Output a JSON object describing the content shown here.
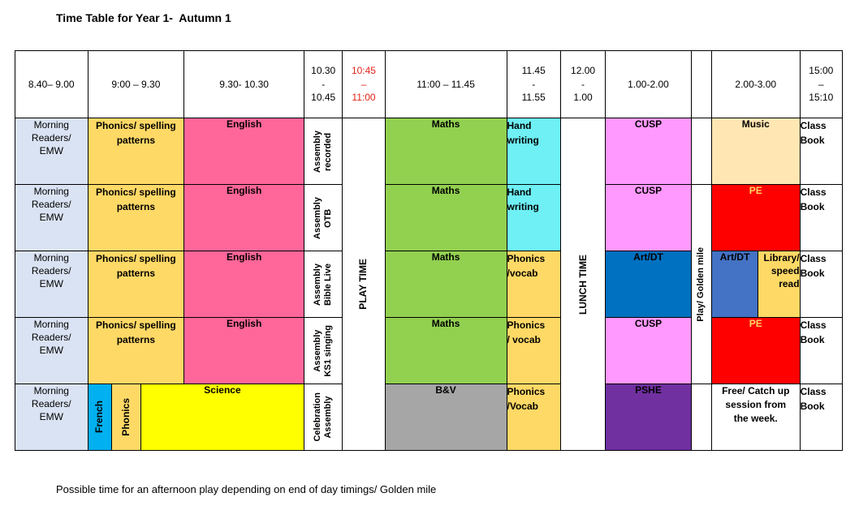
{
  "title": "Time Table for Year 1-  Autumn 1",
  "footnote": "Possible time for an afternoon play depending on end of day timings/ Golden mile",
  "headers": {
    "h1": "8.40– 9.00",
    "h2": "9:00 – 9.30",
    "h3": "9.30- 10.30",
    "h4_a": "10.30",
    "h4_b": "-",
    "h4_c": "10.45",
    "h5_a": "10:45",
    "h5_b": "–",
    "h5_c": "11:00",
    "h6": "11:00 – 11.45",
    "h7_a": "11.45",
    "h7_b": "-",
    "h7_c": "11.55",
    "h8_a": "12.00",
    "h8_b": "-",
    "h8_c": "1.00",
    "h9": "1.00-2.00",
    "h11": "2.00-3.00",
    "h12_a": "15:00",
    "h12_b": "–",
    "h12_c": "15:10"
  },
  "spans": {
    "play_time": "PLAY TIME",
    "lunch_time": "LUNCH TIME",
    "play_golden_mile": "Play/ Golden mile"
  },
  "rows": [
    {
      "morning": [
        "Morning",
        "Readers/",
        "EMW"
      ],
      "phonics": [
        "Phonics/ spelling",
        "patterns"
      ],
      "english": "English",
      "assembly": [
        "Assembly",
        "recorded"
      ],
      "maths": "Maths",
      "slot": [
        "Hand",
        "writing"
      ],
      "afternoon1": "CUSP",
      "afternoon2": "Music",
      "classbook": [
        "Class",
        "Book"
      ]
    },
    {
      "morning": [
        "Morning",
        "Readers/",
        "EMW"
      ],
      "phonics": [
        "Phonics/ spelling",
        "patterns"
      ],
      "english": "English",
      "assembly": [
        "Assembly",
        "OTB"
      ],
      "maths": "Maths",
      "slot": [
        "Hand",
        "writing"
      ],
      "afternoon1": "CUSP",
      "afternoon2": "PE",
      "classbook": [
        "Class",
        "Book"
      ]
    },
    {
      "morning": [
        "Morning",
        "Readers/",
        "EMW"
      ],
      "phonics": [
        "Phonics/ spelling",
        "patterns"
      ],
      "english": "English",
      "assembly": [
        "Assembly",
        "Bible Live"
      ],
      "maths": "Maths",
      "slot": [
        "Phonics",
        "/vocab"
      ],
      "afternoon1": "Art/DT",
      "afternoon2a": "Art/DT",
      "afternoon2b": [
        "Library/",
        "speed",
        "read"
      ],
      "classbook": [
        "Class",
        "Book"
      ]
    },
    {
      "morning": [
        "Morning",
        "Readers/",
        "EMW"
      ],
      "phonics": [
        "Phonics/ spelling",
        "patterns"
      ],
      "english": "English",
      "assembly": [
        "Assembly",
        "KS1 singing"
      ],
      "maths": "Maths",
      "slot": [
        "Phonics",
        "/ vocab"
      ],
      "afternoon1": "CUSP",
      "afternoon2": "PE",
      "classbook": [
        "Class",
        "Book"
      ]
    },
    {
      "morning": [
        "Morning",
        "Readers/",
        "EMW"
      ],
      "french": "French",
      "phonics_short": "Phonics",
      "science": "Science",
      "assembly": [
        "Celebration",
        "Assembly"
      ],
      "maths": "B&V",
      "slot": [
        "Phonics",
        "/Vocab"
      ],
      "afternoon1": "PSHE",
      "afternoon2": [
        "Free/ Catch up",
        "session from",
        "the week."
      ],
      "classbook": [
        "Class",
        "Book"
      ]
    }
  ]
}
